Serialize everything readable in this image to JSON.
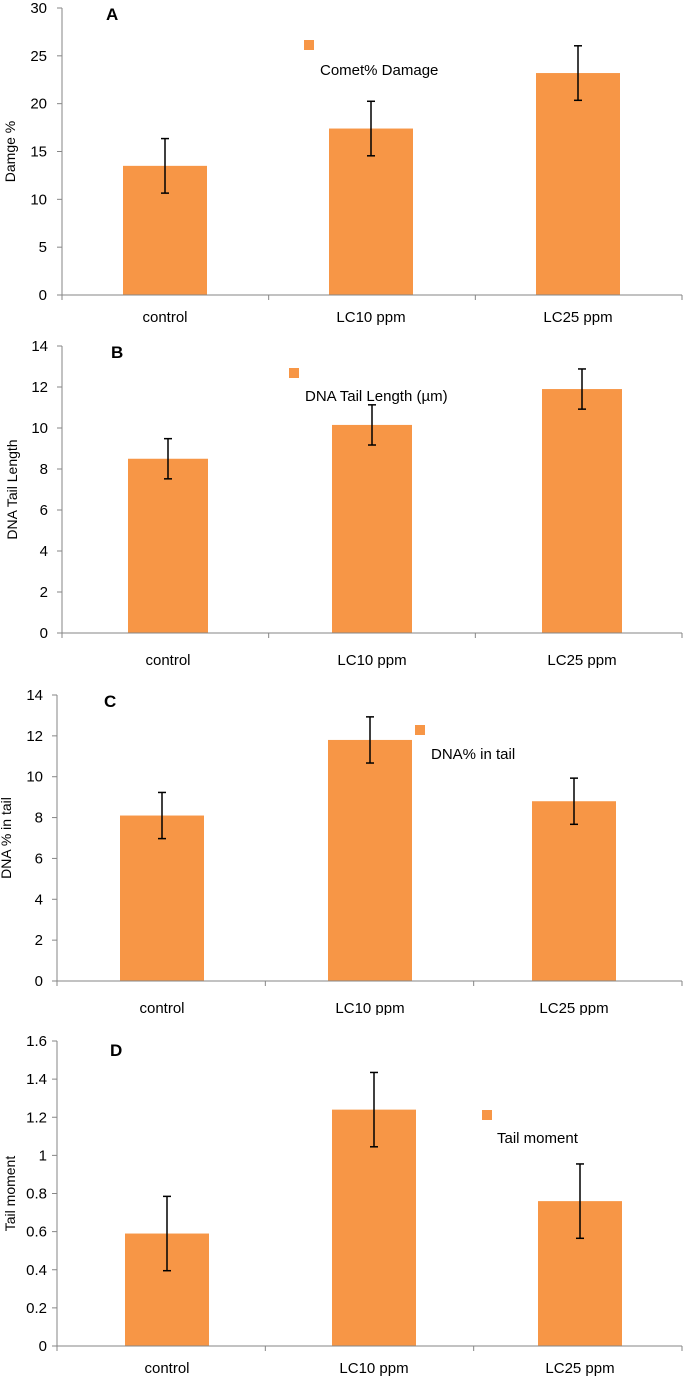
{
  "chart_data": [
    {
      "type": "bar",
      "panel": "A",
      "title": "",
      "categories": [
        "control",
        "LC10 ppm",
        "LC25 ppm"
      ],
      "series": [
        {
          "name": "Comet% Damage",
          "values": [
            13.5,
            17.4,
            23.2
          ],
          "errors": [
            2.85,
            2.85,
            2.85
          ]
        }
      ],
      "xlabel": "",
      "ylabel": "Damge %",
      "ylim": [
        0,
        30
      ],
      "yticks": [
        0,
        5,
        10,
        15,
        20,
        25,
        30
      ],
      "ytick_labels": [
        "0",
        "5",
        "10",
        "15",
        "20",
        "25",
        "30"
      ],
      "bar_color": "#F79646",
      "grid": false,
      "legend_position": "top-center"
    },
    {
      "type": "bar",
      "panel": "B",
      "title": "",
      "categories": [
        "control",
        "LC10 ppm",
        "LC25 ppm"
      ],
      "series": [
        {
          "name": "DNA Tail Length   (µm)",
          "values": [
            8.5,
            10.15,
            11.9
          ],
          "errors": [
            0.98,
            0.98,
            0.98
          ]
        }
      ],
      "xlabel": "",
      "ylabel": "DNA Tail Length",
      "ylim": [
        0,
        14
      ],
      "yticks": [
        0,
        2,
        4,
        6,
        8,
        10,
        12,
        14
      ],
      "ytick_labels": [
        "0",
        "2",
        "4",
        "6",
        "8",
        "10",
        "12",
        "14"
      ],
      "bar_color": "#F79646",
      "grid": false,
      "legend_position": "top-center"
    },
    {
      "type": "bar",
      "panel": "C",
      "title": "",
      "categories": [
        "control",
        "LC10 ppm",
        "LC25 ppm"
      ],
      "series": [
        {
          "name": "DNA% in tail",
          "values": [
            8.1,
            11.8,
            8.8
          ],
          "errors": [
            1.13,
            1.13,
            1.13
          ]
        }
      ],
      "xlabel": "",
      "ylabel": "DNA % in tail",
      "ylim": [
        0,
        14
      ],
      "yticks": [
        0,
        2,
        4,
        6,
        8,
        10,
        12,
        14
      ],
      "ytick_labels": [
        "0",
        "2",
        "4",
        "6",
        "8",
        "10",
        "12",
        "14"
      ],
      "bar_color": "#F79646",
      "grid": false,
      "legend_position": "top-right"
    },
    {
      "type": "bar",
      "panel": "D",
      "title": "",
      "categories": [
        "control",
        "LC10 ppm",
        "LC25 ppm"
      ],
      "series": [
        {
          "name": "Tail moment",
          "values": [
            0.59,
            1.24,
            0.76
          ],
          "errors": [
            0.195,
            0.195,
            0.195
          ]
        }
      ],
      "xlabel": "",
      "ylabel": "Tail moment",
      "ylim": [
        0,
        1.6
      ],
      "yticks": [
        0,
        0.2,
        0.4,
        0.6,
        0.8,
        1.0,
        1.2,
        1.4,
        1.6
      ],
      "ytick_labels": [
        "0",
        "0.2",
        "0.4",
        "0.6",
        "0.8",
        "1",
        "1.2",
        "1.4",
        "1.6"
      ],
      "bar_color": "#F79646",
      "grid": false,
      "legend_position": "top-right"
    }
  ]
}
